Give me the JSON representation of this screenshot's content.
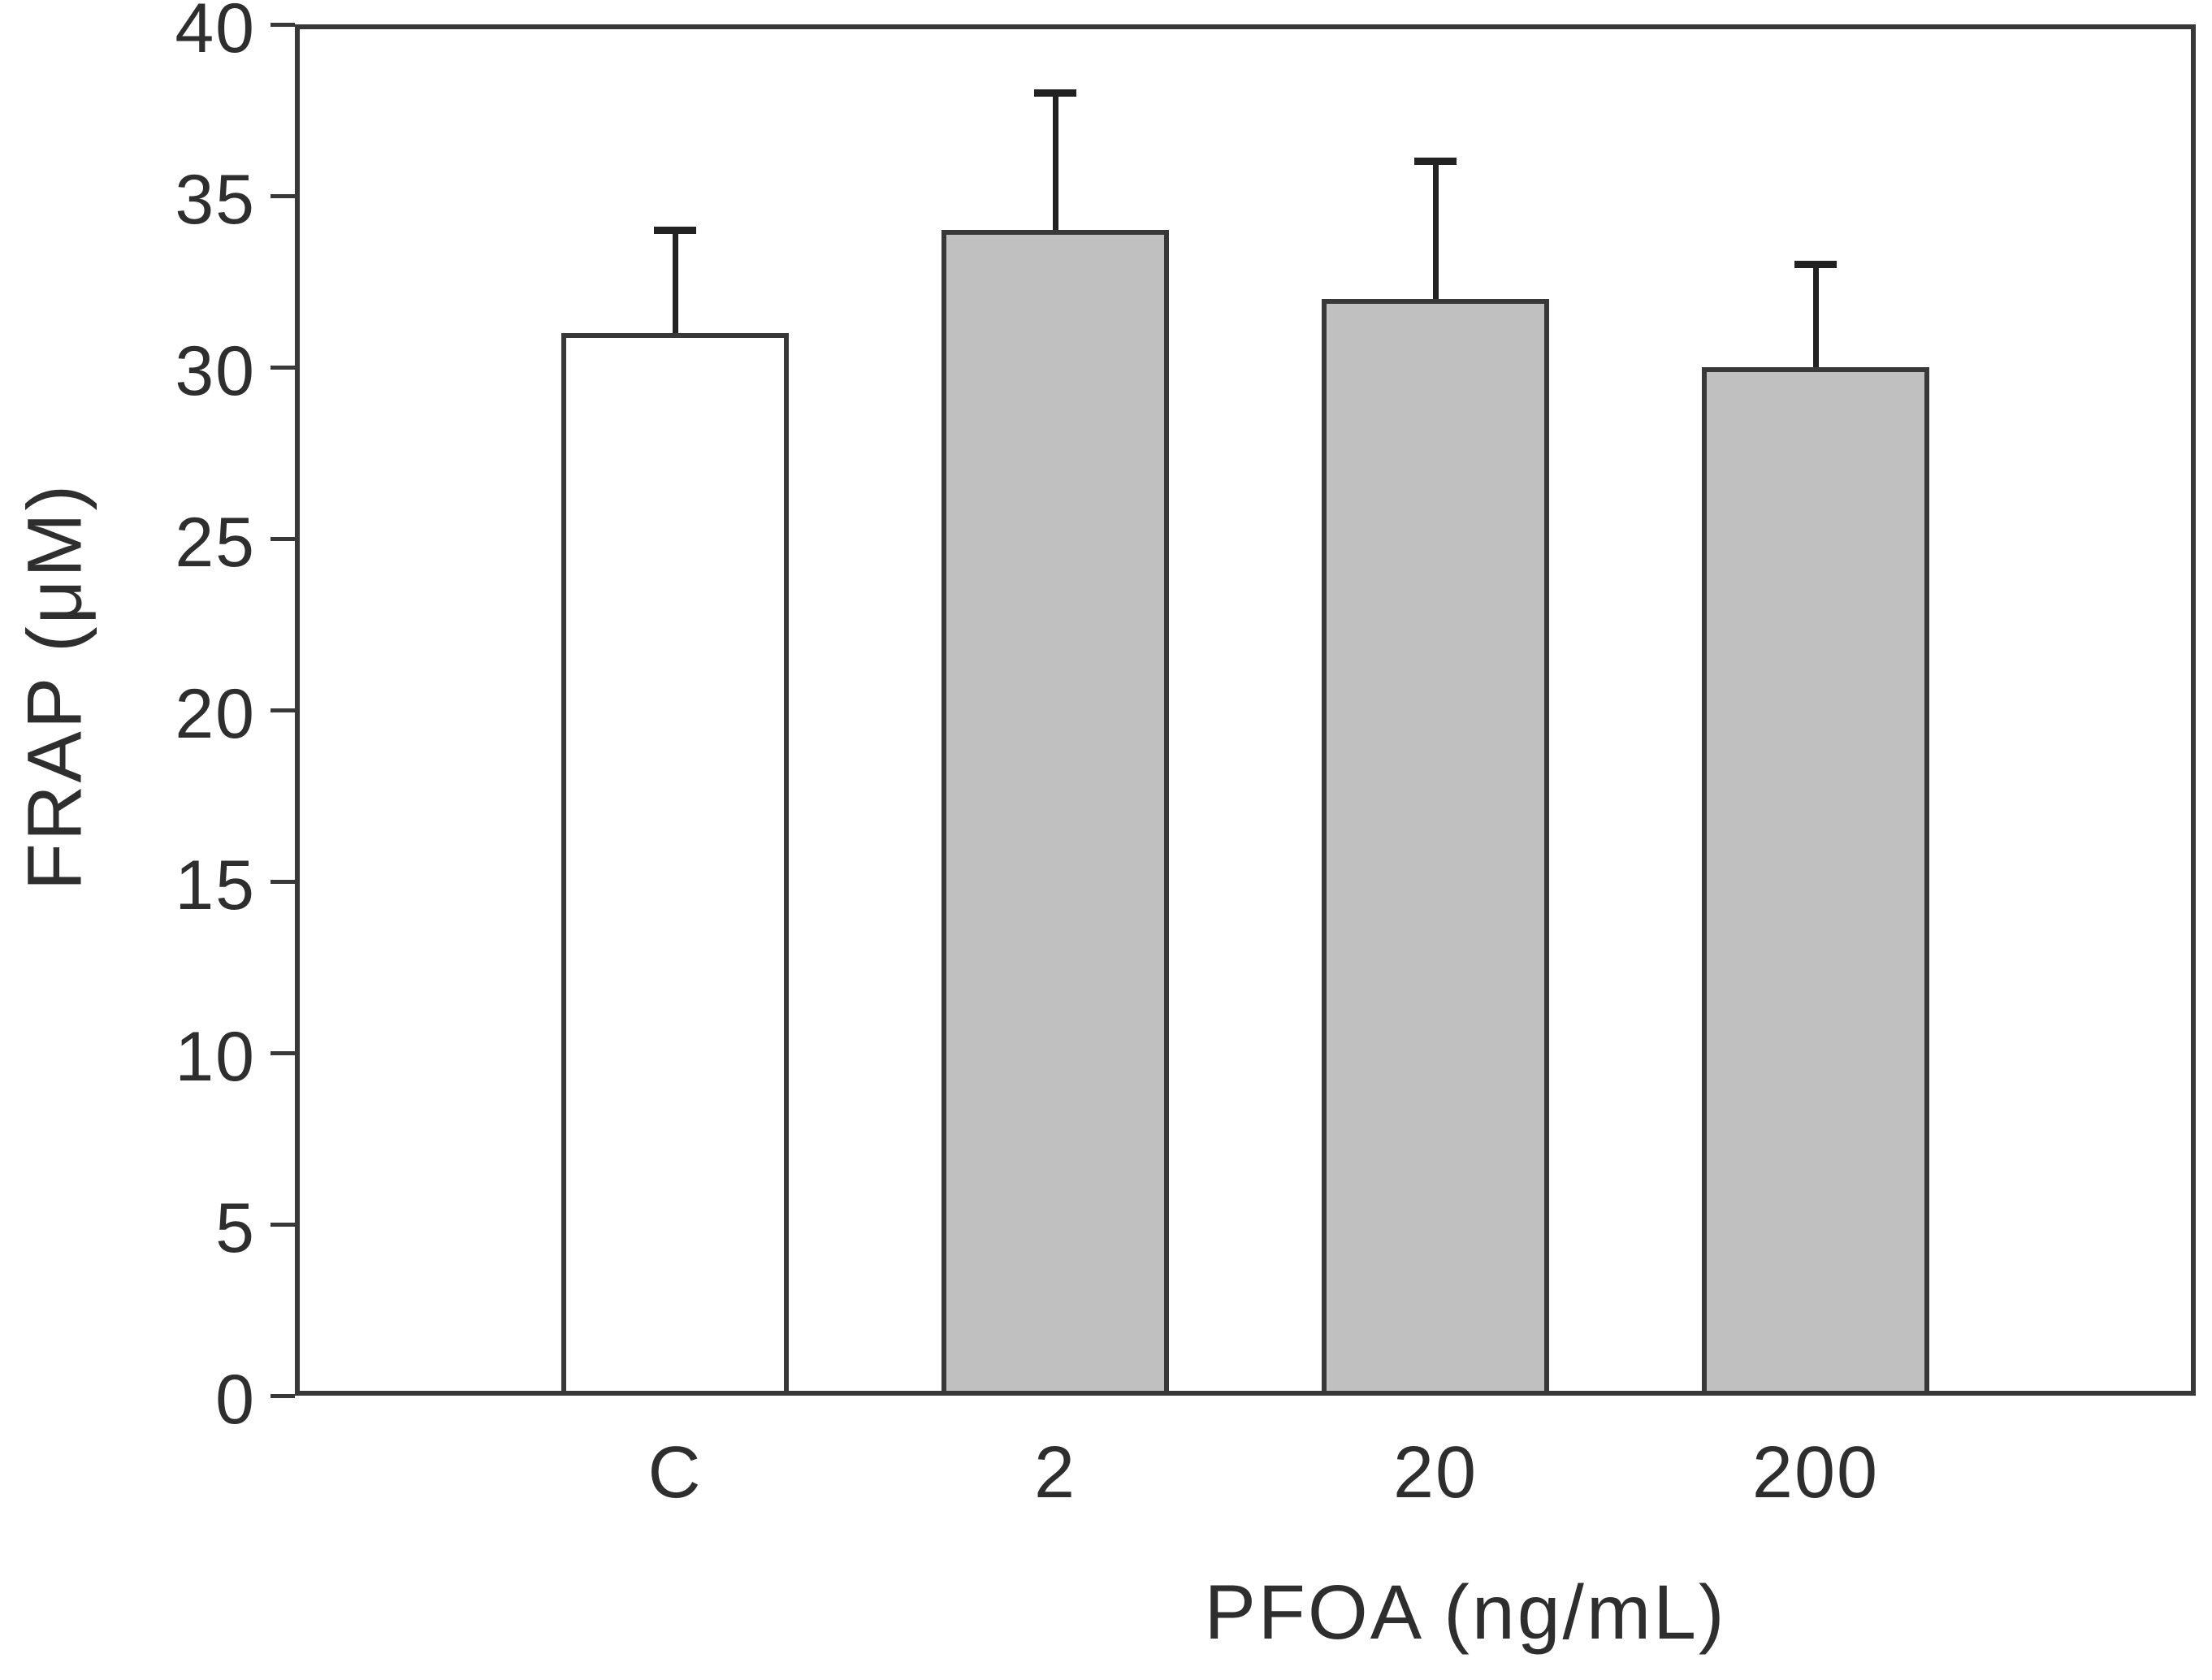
{
  "figure": {
    "background_color": "#ffffff",
    "axis_color": "#383838",
    "text_color": "#2e2e2e",
    "error_bar_color": "#222222"
  },
  "chart_data": {
    "type": "bar",
    "title": "",
    "xlabel": "PFOA (ng/mL)",
    "ylabel": "FRAP (μM)",
    "categories": [
      "C",
      "2",
      "20",
      "200"
    ],
    "values": [
      31,
      34,
      32,
      30
    ],
    "errors_plus": [
      3,
      4,
      4,
      3
    ],
    "ylim": [
      0,
      40
    ],
    "yticks": [
      0,
      5,
      10,
      15,
      20,
      25,
      30,
      35,
      40
    ],
    "bar_fill_colors": [
      "#ffffff",
      "#c0c0c0",
      "#c0c0c0",
      "#c0c0c0"
    ],
    "bar_edge_color": "#383838",
    "grid": false,
    "legend_position": "none",
    "notes": "Control bar is white; PFOA-treated bars are gray; error bars show upper SD caps only; full rectangular plot frame with outward left-side ticks."
  }
}
